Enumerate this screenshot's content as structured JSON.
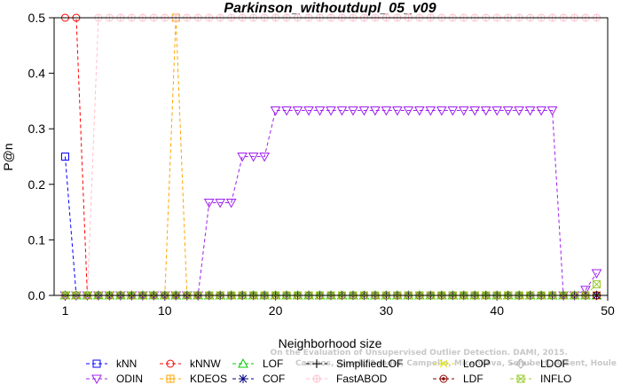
{
  "chart_data": {
    "type": "line",
    "title": "Parkinson_withoutdupl_05_v09",
    "xlabel": "Neighborhood size",
    "ylabel": "P@n",
    "xlim": [
      0,
      50
    ],
    "ylim": [
      0,
      0.5
    ],
    "xticks": [
      "1",
      "10",
      "20",
      "30",
      "40",
      "50"
    ],
    "yticks": [
      "0.0",
      "0.1",
      "0.2",
      "0.3",
      "0.4",
      "0.5"
    ],
    "grid": false,
    "legend_position": "bottom",
    "watermark": [
      "Campos, Zimek, Sander, Campello, Micenkova, Schubert, Assent, Houle",
      "On the Evaluation of Unsupervised Outlier Detection. DAMI, 2015."
    ],
    "x": [
      1,
      2,
      3,
      4,
      5,
      6,
      7,
      8,
      9,
      10,
      11,
      12,
      13,
      14,
      15,
      16,
      17,
      18,
      19,
      20,
      21,
      22,
      23,
      24,
      25,
      26,
      27,
      28,
      29,
      30,
      31,
      32,
      33,
      34,
      35,
      36,
      37,
      38,
      39,
      40,
      41,
      42,
      43,
      44,
      45,
      46,
      47,
      48,
      49
    ],
    "series": [
      {
        "name": "kNN",
        "color": "#0000ff",
        "marker": "square",
        "values": [
          0.25,
          0,
          0,
          0,
          0,
          0,
          0,
          0,
          0,
          0,
          0,
          0,
          0,
          0,
          0,
          0,
          0,
          0,
          0,
          0,
          0,
          0,
          0,
          0,
          0,
          0,
          0,
          0,
          0,
          0,
          0,
          0,
          0,
          0,
          0,
          0,
          0,
          0,
          0,
          0,
          0,
          0,
          0,
          0,
          0,
          0,
          0,
          0,
          0
        ]
      },
      {
        "name": "kNNW",
        "color": "#ff0000",
        "marker": "circle",
        "values": [
          0.5,
          0.5,
          0,
          0,
          0,
          0,
          0,
          0,
          0,
          0,
          0,
          0,
          0,
          0,
          0,
          0,
          0,
          0,
          0,
          0,
          0,
          0,
          0,
          0,
          0,
          0,
          0,
          0,
          0,
          0,
          0,
          0,
          0,
          0,
          0,
          0,
          0,
          0,
          0,
          0,
          0,
          0,
          0,
          0,
          0,
          0,
          0,
          0,
          0
        ]
      },
      {
        "name": "LOF",
        "color": "#00cc00",
        "marker": "triangle-up",
        "values": [
          0,
          0,
          0,
          0,
          0,
          0,
          0,
          0,
          0,
          0,
          0,
          0,
          0,
          0,
          0,
          0,
          0,
          0,
          0,
          0,
          0,
          0,
          0,
          0,
          0,
          0,
          0,
          0,
          0,
          0,
          0,
          0,
          0,
          0,
          0,
          0,
          0,
          0,
          0,
          0,
          0,
          0,
          0,
          0,
          0,
          0,
          0,
          0,
          0
        ]
      },
      {
        "name": "SimplifiedLOF",
        "color": "#000000",
        "marker": "plus",
        "values": [
          0,
          0,
          0,
          0,
          0,
          0,
          0,
          0,
          0,
          0,
          0,
          0,
          0,
          0,
          0,
          0,
          0,
          0,
          0,
          0,
          0,
          0,
          0,
          0,
          0,
          0,
          0,
          0,
          0,
          0,
          0,
          0,
          0,
          0,
          0,
          0,
          0,
          0,
          0,
          0,
          0,
          0,
          0,
          0,
          0,
          0,
          0,
          0,
          0
        ]
      },
      {
        "name": "LoOP",
        "color": "#e6e600",
        "marker": "x",
        "values": [
          0,
          0,
          0,
          0,
          0,
          0,
          0,
          0,
          0,
          0,
          0,
          0,
          0,
          0,
          0,
          0,
          0,
          0,
          0,
          0,
          0,
          0,
          0,
          0,
          0,
          0,
          0,
          0,
          0,
          0,
          0,
          0,
          0,
          0,
          0,
          0,
          0,
          0,
          0,
          0,
          0,
          0,
          0,
          0,
          0,
          0,
          0,
          0,
          0
        ]
      },
      {
        "name": "LDOF",
        "color": "#b0b0b0",
        "marker": "diamond",
        "values": [
          0,
          0,
          0,
          0,
          0,
          0,
          0,
          0,
          0,
          0,
          0,
          0,
          0,
          0,
          0,
          0,
          0,
          0,
          0,
          0,
          0,
          0,
          0,
          0,
          0,
          0,
          0,
          0,
          0,
          0,
          0,
          0,
          0,
          0,
          0,
          0,
          0,
          0,
          0,
          0,
          0,
          0,
          0,
          0,
          0,
          0,
          0,
          0,
          0
        ]
      },
      {
        "name": "ODIN",
        "color": "#a020f0",
        "marker": "triangle-down",
        "values": [
          0,
          0,
          0,
          0,
          0,
          0,
          0,
          0,
          0,
          0,
          0,
          0,
          0,
          0.167,
          0.167,
          0.167,
          0.25,
          0.25,
          0.25,
          0.333,
          0.333,
          0.333,
          0.333,
          0.333,
          0.333,
          0.333,
          0.333,
          0.333,
          0.333,
          0.333,
          0.333,
          0.333,
          0.333,
          0.333,
          0.333,
          0.333,
          0.333,
          0.333,
          0.333,
          0.333,
          0.333,
          0.333,
          0.333,
          0.333,
          0.333,
          0,
          0,
          0.01,
          0.04
        ]
      },
      {
        "name": "KDEOS",
        "color": "#ffa500",
        "marker": "square-cross",
        "values": [
          0,
          0,
          0,
          0,
          0,
          0,
          0,
          0,
          0,
          0,
          0.5,
          0,
          0,
          0,
          0,
          0,
          0,
          0,
          0,
          0,
          0,
          0,
          0,
          0,
          0,
          0,
          0,
          0,
          0,
          0,
          0,
          0,
          0,
          0,
          0,
          0,
          0,
          0,
          0,
          0,
          0,
          0,
          0,
          0,
          0,
          0,
          0,
          0,
          0
        ]
      },
      {
        "name": "COF",
        "color": "#000080",
        "marker": "asterisk",
        "values": [
          0,
          0,
          0,
          0,
          0,
          0,
          0,
          0,
          0,
          0,
          0,
          0,
          0,
          0,
          0,
          0,
          0,
          0,
          0,
          0,
          0,
          0,
          0,
          0,
          0,
          0,
          0,
          0,
          0,
          0,
          0,
          0,
          0,
          0,
          0,
          0,
          0,
          0,
          0,
          0,
          0,
          0,
          0,
          0,
          0,
          0,
          0,
          0,
          0
        ]
      },
      {
        "name": "FastABOD",
        "color": "#ffc0cb",
        "marker": "circle-plus",
        "values": [
          0,
          0,
          0,
          0.5,
          0.5,
          0.5,
          0.5,
          0.5,
          0.5,
          0.5,
          0.5,
          0.5,
          0.5,
          0.5,
          0.5,
          0.5,
          0.5,
          0.5,
          0.5,
          0.5,
          0.5,
          0.5,
          0.5,
          0.5,
          0.5,
          0.5,
          0.5,
          0.5,
          0.5,
          0.5,
          0.5,
          0.5,
          0.5,
          0.5,
          0.5,
          0.5,
          0.5,
          0.5,
          0.5,
          0.5,
          0.5,
          0.5,
          0.5,
          0.5,
          0.5,
          0.5,
          0.5,
          0.5,
          0.5
        ]
      },
      {
        "name": "LDF",
        "color": "#8b0000",
        "marker": "circle-dot",
        "values": [
          0,
          0,
          0,
          0,
          0,
          0,
          0,
          0,
          0,
          0,
          0,
          0,
          0,
          0,
          0,
          0,
          0,
          0,
          0,
          0,
          0,
          0,
          0,
          0,
          0,
          0,
          0,
          0,
          0,
          0,
          0,
          0,
          0,
          0,
          0,
          0,
          0,
          0,
          0,
          0,
          0,
          0,
          0,
          0,
          0,
          0,
          0,
          0,
          0
        ]
      },
      {
        "name": "INFLO",
        "color": "#9acd32",
        "marker": "square-x",
        "values": [
          0,
          0,
          0,
          0,
          0,
          0,
          0,
          0,
          0,
          0,
          0,
          0,
          0,
          0,
          0,
          0,
          0,
          0,
          0,
          0,
          0,
          0,
          0,
          0,
          0,
          0,
          0,
          0,
          0,
          0,
          0,
          0,
          0,
          0,
          0,
          0,
          0,
          0,
          0,
          0,
          0,
          0,
          0,
          0,
          0,
          0,
          0,
          0,
          0.02
        ]
      }
    ]
  }
}
